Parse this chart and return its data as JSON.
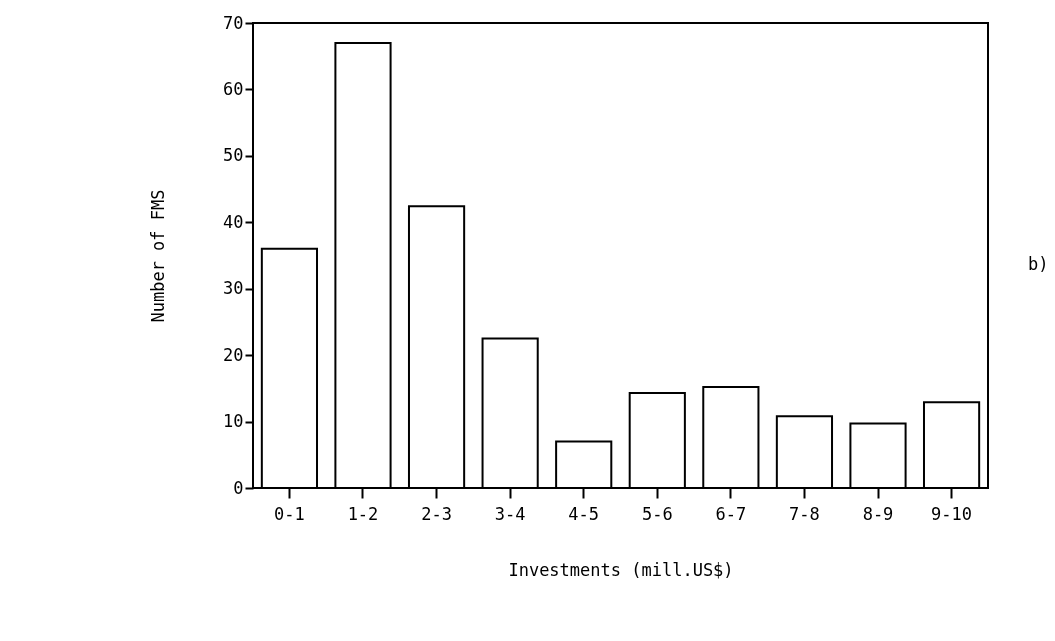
{
  "chart_data": {
    "type": "bar",
    "xlabel": "Investments (mill.US$)",
    "ylabel": "Number of FMS",
    "categories": [
      "0-1",
      "1-2",
      "2-3",
      "3-4",
      "4-5",
      "5-6",
      "6-7",
      "7-8",
      "8-9",
      "9-10"
    ],
    "values": [
      36,
      67,
      42.4,
      22.5,
      7,
      14.3,
      15.2,
      10.8,
      9.7,
      12.9
    ],
    "color": "#ffffff",
    "ylim": [
      0,
      70
    ],
    "yticks": [
      0,
      10,
      20,
      30,
      40,
      50,
      60,
      70
    ],
    "grid": false,
    "annotations": [
      "b)"
    ]
  }
}
